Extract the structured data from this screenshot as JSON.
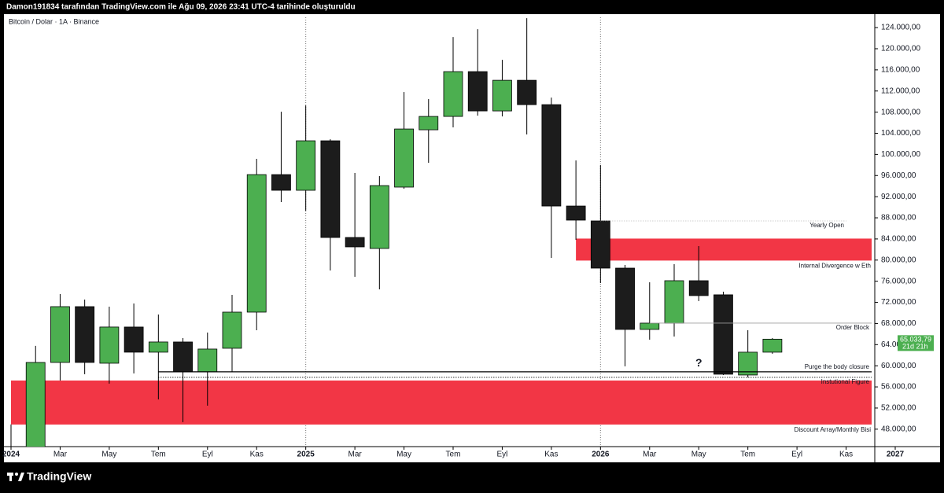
{
  "header": "Damon191834 tarafından TradingView.com ile Ağu 09, 2026 23:41 UTC-4 tarihinde oluşturuldu",
  "brand": "TradingView",
  "chart_data": {
    "type": "candlestick",
    "title": "Bitcoin / Dolar · 1A · Binance",
    "x": [
      "2024-01",
      "2024-02",
      "2024-03",
      "2024-04",
      "2024-05",
      "2024-06",
      "2024-07",
      "2024-08",
      "2024-09",
      "2024-10",
      "2024-11",
      "2024-12",
      "2025-01",
      "2025-02",
      "2025-03",
      "2025-04",
      "2025-05",
      "2025-06",
      "2025-07",
      "2025-08",
      "2025-09",
      "2025-10",
      "2025-11",
      "2025-12",
      "2026-01",
      "2026-02",
      "2026-03",
      "2026-04",
      "2026-05",
      "2026-06",
      "2026-07",
      "2026-08"
    ],
    "open": [
      42300,
      42600,
      60630,
      71190,
      60480,
      67330,
      62570,
      64500,
      58850,
      63310,
      70150,
      96180,
      93210,
      102580,
      84280,
      82200,
      93810,
      104660,
      107190,
      115670,
      108230,
      114030,
      109420,
      90230,
      87410,
      78480,
      66880,
      68070,
      76100,
      73430,
      58250,
      62570
    ],
    "high": [
      48900,
      63760,
      73570,
      72530,
      71190,
      71790,
      69700,
      65240,
      66290,
      73420,
      99160,
      108080,
      109270,
      102870,
      96480,
      95890,
      111800,
      110470,
      122210,
      123700,
      117900,
      125780,
      110760,
      98860,
      97970,
      79070,
      75800,
      79220,
      82650,
      74020,
      66730,
      65240
    ],
    "low": [
      38600,
      41900,
      57210,
      58400,
      56620,
      58550,
      53640,
      49330,
      52450,
      58850,
      66730,
      90980,
      89340,
      78040,
      76850,
      74460,
      93510,
      98410,
      105110,
      107340,
      107190,
      103770,
      80420,
      83840,
      75660,
      59890,
      64940,
      65540,
      72240,
      58250,
      57800,
      62270
    ],
    "close": [
      42600,
      60630,
      71190,
      60630,
      67330,
      62570,
      64500,
      58850,
      63160,
      70150,
      96180,
      93210,
      102580,
      84280,
      82500,
      94100,
      104810,
      107190,
      115670,
      108230,
      114030,
      109420,
      90230,
      87560,
      78480,
      66880,
      68070,
      76100,
      73280,
      58400,
      62570,
      65033.79
    ],
    "up_color": "#4caf50",
    "down_color": "#1c1c1c",
    "xlim": [
      "2024-01",
      "2027-01"
    ],
    "xticks": [
      {
        "value": "2024-01",
        "label": "2024"
      },
      {
        "value": "2024-03",
        "label": "Mar"
      },
      {
        "value": "2024-05",
        "label": "May"
      },
      {
        "value": "2024-07",
        "label": "Tem"
      },
      {
        "value": "2024-09",
        "label": "Eyl"
      },
      {
        "value": "2024-11",
        "label": "Kas"
      },
      {
        "value": "2025-01",
        "label": "2025"
      },
      {
        "value": "2025-03",
        "label": "Mar"
      },
      {
        "value": "2025-05",
        "label": "May"
      },
      {
        "value": "2025-07",
        "label": "Tem"
      },
      {
        "value": "2025-09",
        "label": "Eyl"
      },
      {
        "value": "2025-11",
        "label": "Kas"
      },
      {
        "value": "2026-01",
        "label": "2026"
      },
      {
        "value": "2026-03",
        "label": "Mar"
      },
      {
        "value": "2026-05",
        "label": "May"
      },
      {
        "value": "2026-07",
        "label": "Tem"
      },
      {
        "value": "2026-09",
        "label": "Eyl"
      },
      {
        "value": "2026-11",
        "label": "Kas"
      },
      {
        "value": "2027-01",
        "label": "2027"
      }
    ],
    "year_separators": [
      "2025-01",
      "2026-01"
    ],
    "ylim": [
      44700,
      125950
    ],
    "yticks": [
      {
        "value": 124000,
        "label": "124.000,00"
      },
      {
        "value": 120000,
        "label": "120.000,00"
      },
      {
        "value": 116000,
        "label": "116.000,00"
      },
      {
        "value": 112000,
        "label": "112.000,00"
      },
      {
        "value": 108000,
        "label": "108.000,00"
      },
      {
        "value": 104000,
        "label": "104.000,00"
      },
      {
        "value": 100000,
        "label": "100.000,00"
      },
      {
        "value": 96000,
        "label": "96.000,00"
      },
      {
        "value": 92000,
        "label": "92.000,00"
      },
      {
        "value": 88000,
        "label": "88.000,00"
      },
      {
        "value": 84000,
        "label": "84.000,00"
      },
      {
        "value": 80000,
        "label": "80.000,00"
      },
      {
        "value": 76000,
        "label": "76.000,00"
      },
      {
        "value": 72000,
        "label": "72.000,00"
      },
      {
        "value": 68000,
        "label": "68.000,00"
      },
      {
        "value": 64000,
        "label": "64.000,00"
      },
      {
        "value": 60000,
        "label": "60.000,00"
      },
      {
        "value": 56000,
        "label": "56.000,00"
      },
      {
        "value": 52000,
        "label": "52.000,00"
      },
      {
        "value": 48000,
        "label": "48.000,00"
      }
    ],
    "grid": false,
    "zones": [
      {
        "label": "Internal Divergence w Eth",
        "start": "2025-12",
        "y": [
          79910,
          84070
        ],
        "color": "#f23645"
      },
      {
        "label": "Discount Array/Monthly Bisi",
        "start": "2024-01",
        "y": [
          48880,
          57210
        ],
        "color": "#f23645"
      }
    ],
    "levels": [
      {
        "label": "Yearly Open",
        "start": "2026-01",
        "value": 87410,
        "style": "dotted",
        "color": "#9e9e9e",
        "label_side": "below"
      },
      {
        "label": "Order Block",
        "start": "2026-03",
        "value": 68070,
        "style": "solid",
        "color": "#9e9e9e",
        "label_side": "below"
      },
      {
        "label": "Purge the body closure",
        "start": "2024-07",
        "value": 58850,
        "style": "solid",
        "color": "#000000",
        "label_side": "above"
      },
      {
        "label": "Instutional Figure",
        "start": "2024-07",
        "value": 57810,
        "style": "dotted",
        "color": "#000000",
        "label_side": "below"
      }
    ],
    "annotations": [
      {
        "text": "?",
        "x": "2026-05",
        "y": 60400
      }
    ],
    "last_price": {
      "value": 65033.79,
      "label": "65.033,79",
      "countdown": "21d 21h",
      "color": "#4caf50"
    }
  }
}
